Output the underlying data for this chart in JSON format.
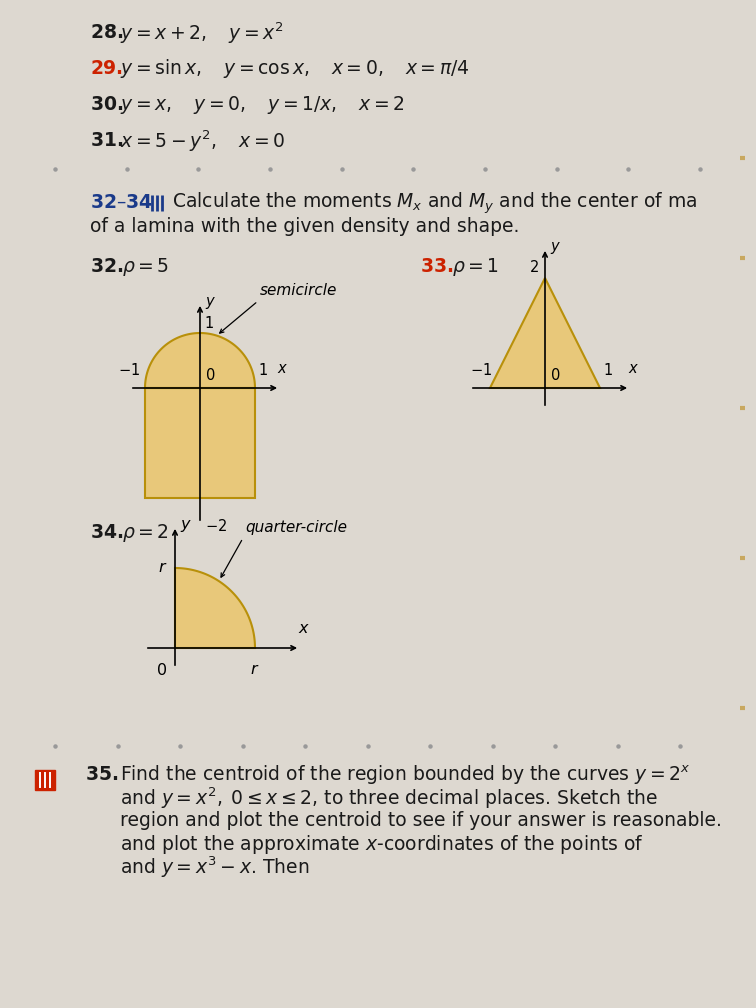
{
  "page_bg": "#ddd8d0",
  "fill_color": "#e8c87a",
  "fill_edge_color": "#b8900a",
  "text_color": "#1a1a1a",
  "red_color": "#cc2200",
  "blue_color": "#1a3a8a",
  "axis_color": "#111111",
  "dot_color": "#999999",
  "prob28_text": "$y = x + 2, \\quad y = x^2$",
  "prob29_text": "$y = \\sin x, \\quad y = \\cos x, \\quad x = 0, \\quad x = \\pi/4$",
  "prob30_text": "$y = x, \\quad y = 0, \\quad y = 1/x, \\quad x = 2$",
  "prob31_text": "$x = 5 - y^2, \\quad x = 0$",
  "section_hdr": "32–34",
  "section_instr1": "Calculate the moments $M_x$ and $M_y$ and the center of ma",
  "section_instr2": "of a lamina with the given density and shape.",
  "p32_rho": "$\\rho = 5$",
  "p33_rho": "$\\rho = 1$",
  "p34_rho": "$\\rho = 2$",
  "semicircle_label": "semicircle",
  "qcircle_label": "quarter-circle",
  "p35_line1": "Find the centroid of the region bounded by the curves $y = 2^x$",
  "p35_line2": "and $y = x^2, \\; 0 \\leq x \\leq 2$, to three decimal places. Sketch the",
  "p35_line3": "region and plot the centroid to see if your answer is reasonable.",
  "p35_line4": "and plot the approximate $x$-coordinates of the points of",
  "p35_line5": "and $y = x^3 - x$. Then"
}
